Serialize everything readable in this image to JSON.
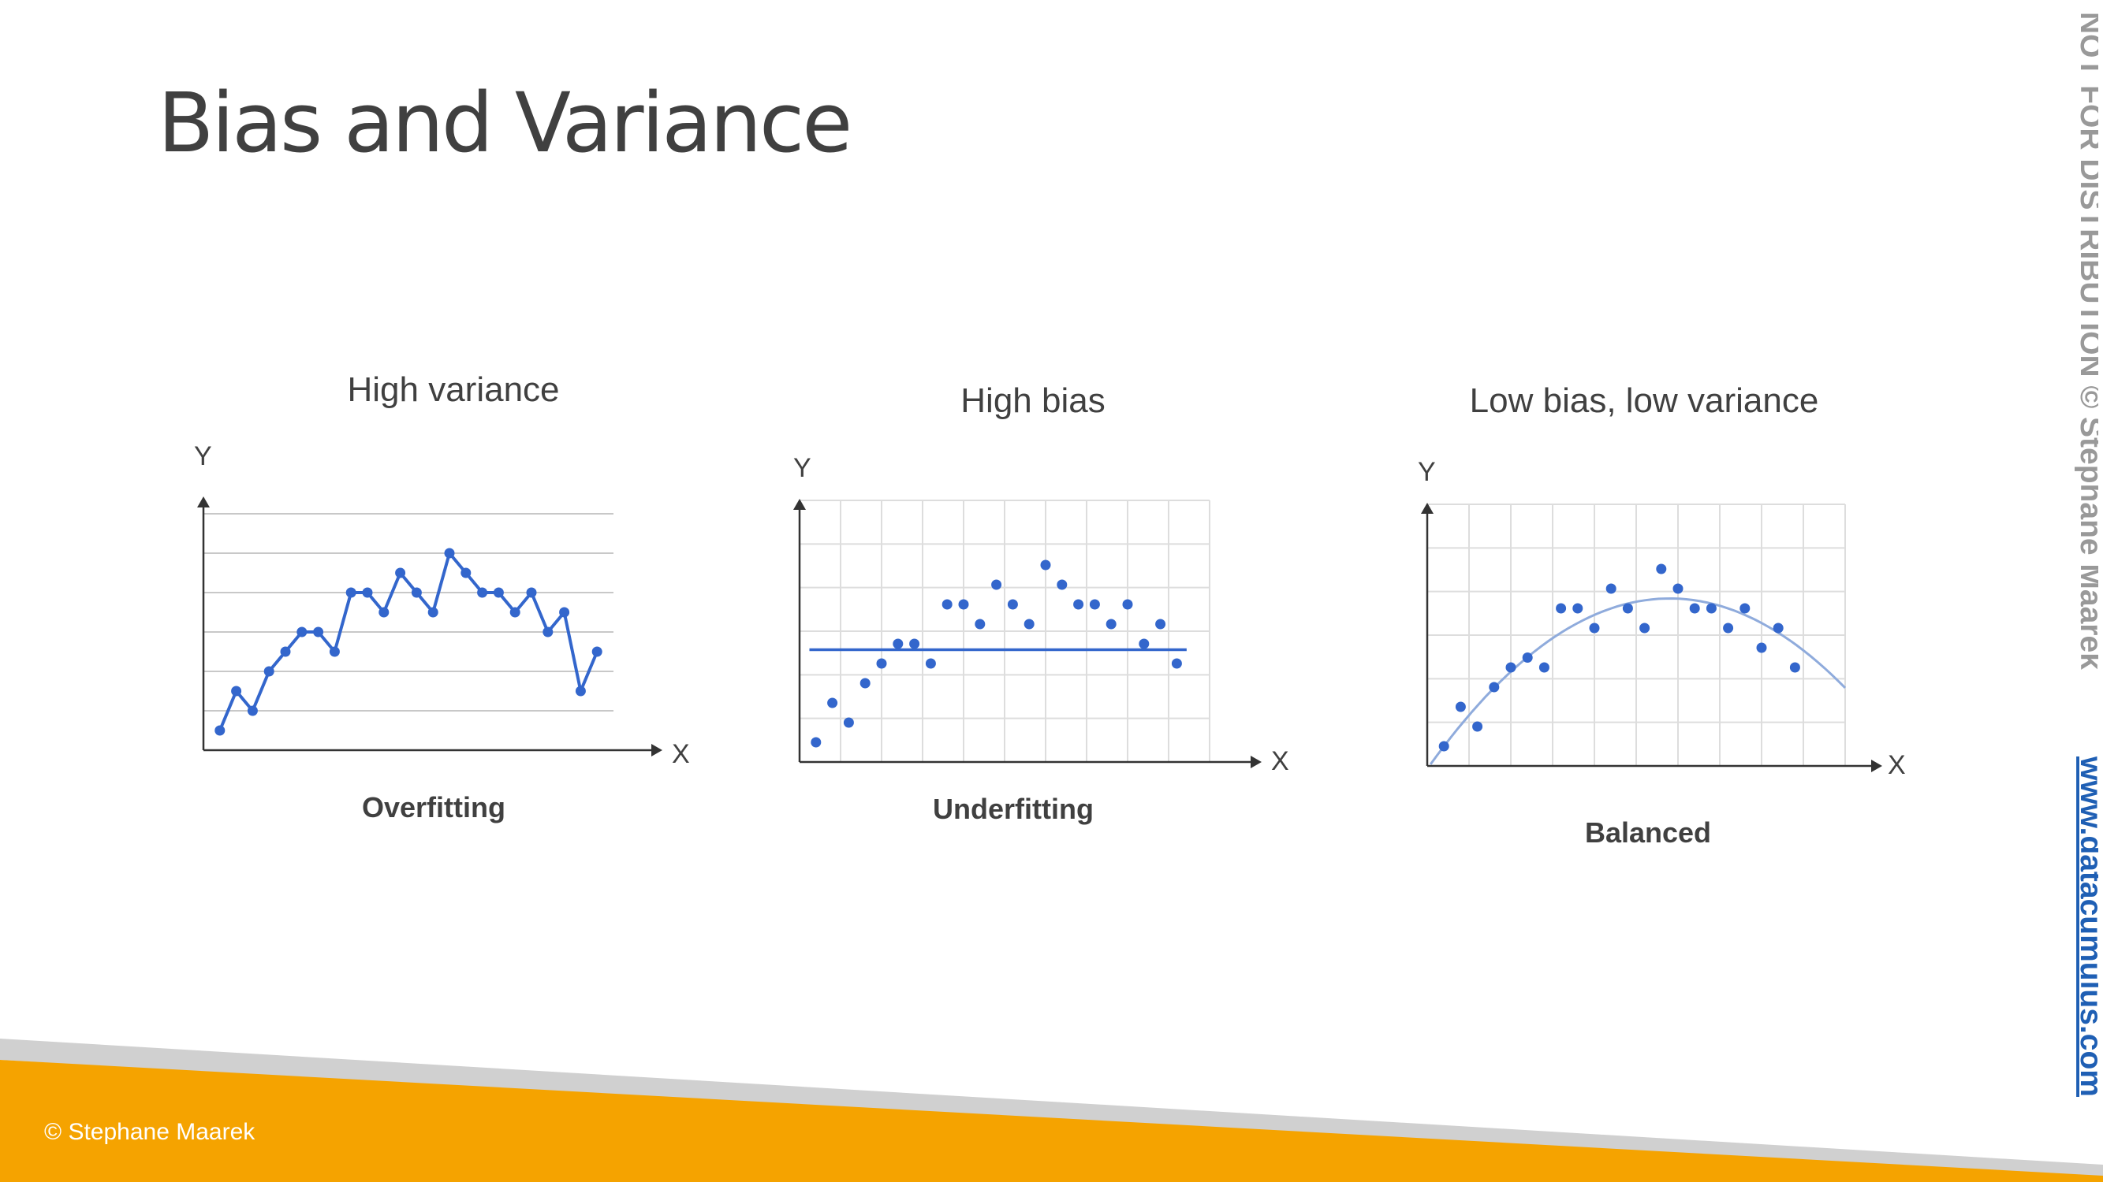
{
  "title": "Bias and Variance",
  "watermark": {
    "notice": "NOT FOR DISTRIBUTION © Stephane Maarek",
    "website": "www.datacumulus.com"
  },
  "footer": {
    "copyright": "© Stephane Maarek"
  },
  "colors": {
    "series_blue": "#3366cc",
    "fit_line_light": "#8fabdc",
    "band_orange": "#f5a300",
    "band_grey": "#d0d0d0",
    "text": "#404040",
    "link_blue": "#1f5fb4"
  },
  "panels": [
    {
      "id": "high-variance",
      "title": "High variance",
      "caption": "Overfitting",
      "axis_x": "X",
      "axis_y": "Y"
    },
    {
      "id": "high-bias",
      "title": "High bias",
      "caption": "Underfitting",
      "axis_x": "X",
      "axis_y": "Y"
    },
    {
      "id": "balanced",
      "title": "Low bias, low variance",
      "caption": "Balanced",
      "axis_x": "X",
      "axis_y": "Y"
    }
  ],
  "chart_data": [
    {
      "type": "line",
      "grid": "horizontal",
      "points": [
        [
          1,
          1
        ],
        [
          2,
          3
        ],
        [
          3,
          2
        ],
        [
          4,
          4
        ],
        [
          5,
          5
        ],
        [
          6,
          6
        ],
        [
          7,
          6
        ],
        [
          8,
          5
        ],
        [
          9,
          8
        ],
        [
          10,
          8
        ],
        [
          11,
          7
        ],
        [
          12,
          9
        ],
        [
          13,
          8
        ],
        [
          14,
          7
        ],
        [
          15,
          10
        ],
        [
          16,
          9
        ],
        [
          17,
          8
        ],
        [
          18,
          8
        ],
        [
          19,
          7
        ],
        [
          20,
          8
        ],
        [
          21,
          6
        ],
        [
          22,
          7
        ],
        [
          23,
          3
        ],
        [
          24,
          5
        ]
      ],
      "xlim": [
        0,
        25
      ],
      "ylim": [
        0,
        12
      ]
    },
    {
      "type": "scatter",
      "grid": "both",
      "points": [
        [
          1,
          1
        ],
        [
          2,
          3
        ],
        [
          3,
          2
        ],
        [
          4,
          4
        ],
        [
          5,
          5
        ],
        [
          6,
          6
        ],
        [
          7,
          6
        ],
        [
          8,
          5
        ],
        [
          9,
          8
        ],
        [
          10,
          8
        ],
        [
          11,
          7
        ],
        [
          12,
          9
        ],
        [
          13,
          8
        ],
        [
          14,
          7
        ],
        [
          15,
          10
        ],
        [
          16,
          9
        ],
        [
          17,
          8
        ],
        [
          18,
          8
        ],
        [
          19,
          7
        ],
        [
          20,
          8
        ],
        [
          21,
          6
        ],
        [
          22,
          7
        ],
        [
          23,
          5
        ]
      ],
      "fit": {
        "kind": "constant",
        "y": 5.7,
        "x_from": 0.6,
        "x_to": 23.6
      },
      "xlim": [
        0,
        25
      ],
      "ylim": [
        0,
        12
      ]
    },
    {
      "type": "scatter",
      "grid": "both",
      "points": [
        [
          1,
          1
        ],
        [
          2,
          3
        ],
        [
          3,
          2
        ],
        [
          4,
          4
        ],
        [
          5,
          5
        ],
        [
          6,
          5.5
        ],
        [
          7,
          5
        ],
        [
          8,
          8
        ],
        [
          9,
          8
        ],
        [
          10,
          7
        ],
        [
          11,
          9
        ],
        [
          12,
          8
        ],
        [
          13,
          7
        ],
        [
          14,
          10
        ],
        [
          15,
          9
        ],
        [
          16,
          8
        ],
        [
          17,
          8
        ],
        [
          18,
          7
        ],
        [
          19,
          8
        ],
        [
          20,
          6
        ],
        [
          21,
          7
        ],
        [
          22,
          5
        ]
      ],
      "fit": {
        "kind": "quadratic",
        "peak_x": 14.5,
        "peak_y": 8.5,
        "x_from": 0.2,
        "x_to": 25
      },
      "xlim": [
        0,
        25
      ],
      "ylim": [
        0,
        12
      ]
    }
  ]
}
